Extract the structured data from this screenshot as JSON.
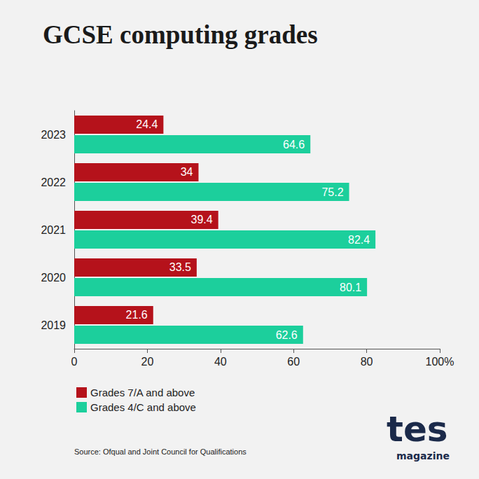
{
  "chart_data": {
    "type": "bar",
    "orientation": "horizontal",
    "title": "GCSE computing grades",
    "categories": [
      "2019",
      "2020",
      "2021",
      "2022",
      "2023"
    ],
    "series": [
      {
        "name": "Grades 7/A and above",
        "color": "#b5121b",
        "values": [
          21.6,
          33.5,
          39.4,
          34,
          24.4
        ]
      },
      {
        "name": "Grades 4/C and above",
        "color": "#1ccf9c",
        "values": [
          62.6,
          80.1,
          82.4,
          75.2,
          64.6
        ]
      }
    ],
    "xlim": [
      0,
      100
    ],
    "xticks": [
      0,
      20,
      40,
      60,
      80,
      {
        "value": 100,
        "label": "100%"
      }
    ],
    "grid": false,
    "data_labels": true,
    "legend": "bottom-left",
    "source": "Source: Ofqual and Joint Council for Qualifications",
    "branding": [
      "tes",
      "magazine"
    ]
  }
}
